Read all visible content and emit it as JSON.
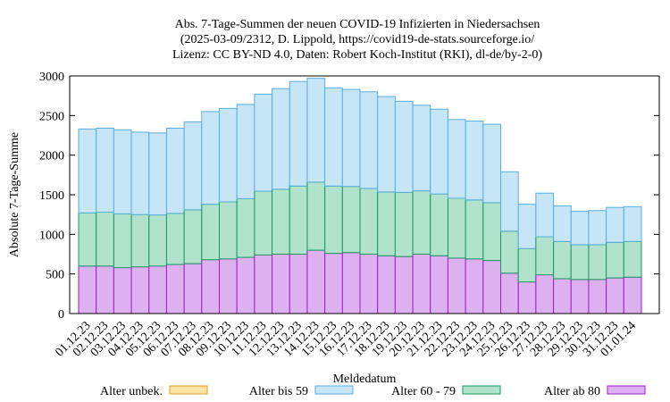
{
  "chart_data": {
    "type": "stacked_bar",
    "title": [
      "Abs. 7-Tage-Summen der neuen COVID-19 Infizierten in Niedersachsen",
      "(2025-03-09/2312, D. Lippold, https://covid19-de-stats.sourceforge.io/",
      "Lizenz: CC BY-ND 4.0, Daten: Robert Koch-Institut (RKI), dl-de/by-2-0)"
    ],
    "x_label": "Meldedatum",
    "y_label": "Absolute 7-Tage-Summe",
    "categories": [
      "01.12.23",
      "02.12.23",
      "03.12.23",
      "04.12.23",
      "05.12.23",
      "06.12.23",
      "07.12.23",
      "08.12.23",
      "09.12.23",
      "10.12.23",
      "11.12.23",
      "12.12.23",
      "13.12.23",
      "14.12.23",
      "15.12.23",
      "16.12.23",
      "17.12.23",
      "18.12.23",
      "19.12.23",
      "20.12.23",
      "21.12.23",
      "22.12.23",
      "23.12.23",
      "24.12.23",
      "25.12.23",
      "26.12.23",
      "27.12.23",
      "28.12.23",
      "29.12.23",
      "30.12.23",
      "31.12.23",
      "01.01.24"
    ],
    "series": [
      {
        "name": "Alter ab 80",
        "color": "#ddb0f0",
        "stroke": "#9a20c8",
        "values": [
          600,
          600,
          580,
          590,
          600,
          620,
          630,
          680,
          690,
          710,
          740,
          750,
          750,
          800,
          760,
          770,
          750,
          730,
          720,
          750,
          730,
          700,
          690,
          670,
          510,
          400,
          490,
          440,
          430,
          430,
          450,
          460
        ]
      },
      {
        "name": "Alter 60 - 79",
        "color": "#b0e2cc",
        "stroke": "#1a9a60",
        "values": [
          670,
          680,
          680,
          660,
          645,
          645,
          680,
          700,
          720,
          740,
          805,
          820,
          860,
          860,
          850,
          835,
          830,
          805,
          810,
          800,
          780,
          755,
          745,
          730,
          530,
          420,
          480,
          470,
          440,
          440,
          450,
          450
        ]
      },
      {
        "name": "Alter bis 59",
        "color": "#c6e6f8",
        "stroke": "#5aaedc",
        "values": [
          1060,
          1060,
          1060,
          1040,
          1035,
          1075,
          1110,
          1170,
          1180,
          1190,
          1225,
          1270,
          1320,
          1310,
          1240,
          1225,
          1220,
          1205,
          1150,
          1080,
          1070,
          995,
          995,
          990,
          750,
          560,
          550,
          450,
          420,
          430,
          440,
          440
        ]
      },
      {
        "name": "Alter unbek.",
        "color": "#fde3a7",
        "stroke": "#e0a020",
        "values": [
          0,
          0,
          0,
          0,
          0,
          0,
          0,
          0,
          0,
          0,
          0,
          0,
          0,
          0,
          0,
          0,
          0,
          0,
          0,
          0,
          0,
          0,
          0,
          0,
          0,
          0,
          0,
          0,
          0,
          0,
          0,
          0
        ]
      }
    ],
    "legend_order": [
      3,
      2,
      1,
      0
    ],
    "ylim": [
      0,
      3000
    ],
    "yticks": [
      0,
      500,
      1000,
      1500,
      2000,
      2500,
      3000
    ]
  }
}
